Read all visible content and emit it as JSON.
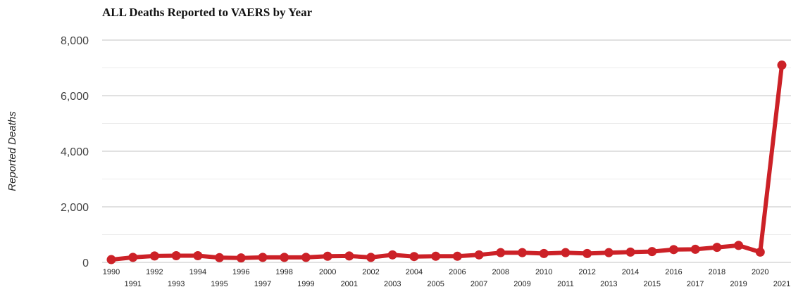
{
  "chart_data": {
    "type": "line",
    "title": "ALL Deaths Reported to VAERS by Year",
    "xlabel": "",
    "ylabel": "Reported Deaths",
    "ylim": [
      0,
      8000
    ],
    "yticks": [
      "0",
      "2,000",
      "4,000",
      "6,000",
      "8,000"
    ],
    "grid": true,
    "color": "#cc2127",
    "x": [
      "1990",
      "1991",
      "1992",
      "1993",
      "1994",
      "1995",
      "1996",
      "1997",
      "1998",
      "1999",
      "2000",
      "2001",
      "2002",
      "2003",
      "2004",
      "2005",
      "2006",
      "2007",
      "2008",
      "2009",
      "2010",
      "2011",
      "2012",
      "2013",
      "2014",
      "2015",
      "2016",
      "2017",
      "2018",
      "2019",
      "2020",
      "2021"
    ],
    "values": [
      100,
      180,
      230,
      240,
      240,
      170,
      160,
      180,
      180,
      180,
      220,
      230,
      180,
      270,
      210,
      220,
      220,
      270,
      350,
      350,
      320,
      350,
      320,
      350,
      370,
      390,
      460,
      470,
      540,
      610,
      370,
      7100
    ]
  }
}
